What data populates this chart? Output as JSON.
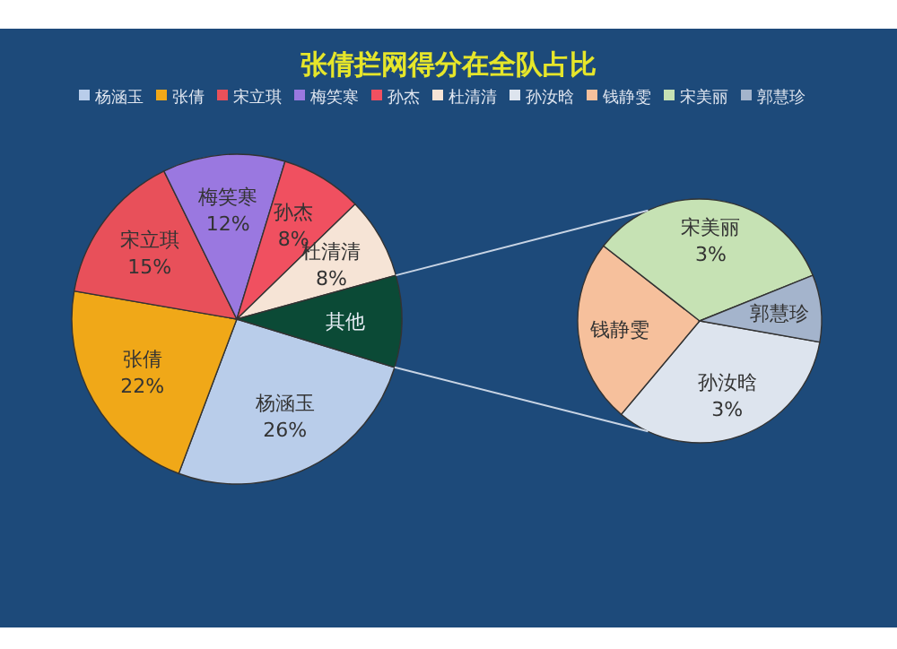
{
  "chart_data": [
    {
      "type": "pie",
      "title": "张倩拦网得分在全队占比",
      "legend": "top",
      "categories": [
        "杨涵玉",
        "张倩",
        "宋立琪",
        "梅笑寒",
        "孙杰",
        "杜清清",
        "其他"
      ],
      "values": [
        26,
        22,
        15,
        12,
        8,
        8,
        9
      ],
      "colors": [
        "#b9cdea",
        "#f0a818",
        "#e8505a",
        "#9a78e0",
        "#f05060",
        "#f6e4d6",
        "#0b4a36"
      ],
      "value_labels": [
        "26%",
        "22%",
        "15%",
        "12%",
        "8%",
        "8%",
        null
      ]
    },
    {
      "type": "pie",
      "legend": "top",
      "categories": [
        "孙汝晗",
        "钱静雯",
        "宋美丽",
        "郭慧珍"
      ],
      "values": [
        3,
        2.2,
        3,
        0.8
      ],
      "colors": [
        "#dde4ee",
        "#f6c09c",
        "#c6e2b4",
        "#a4b4cc"
      ],
      "value_labels": [
        "3%",
        null,
        "3%",
        null
      ]
    }
  ]
}
